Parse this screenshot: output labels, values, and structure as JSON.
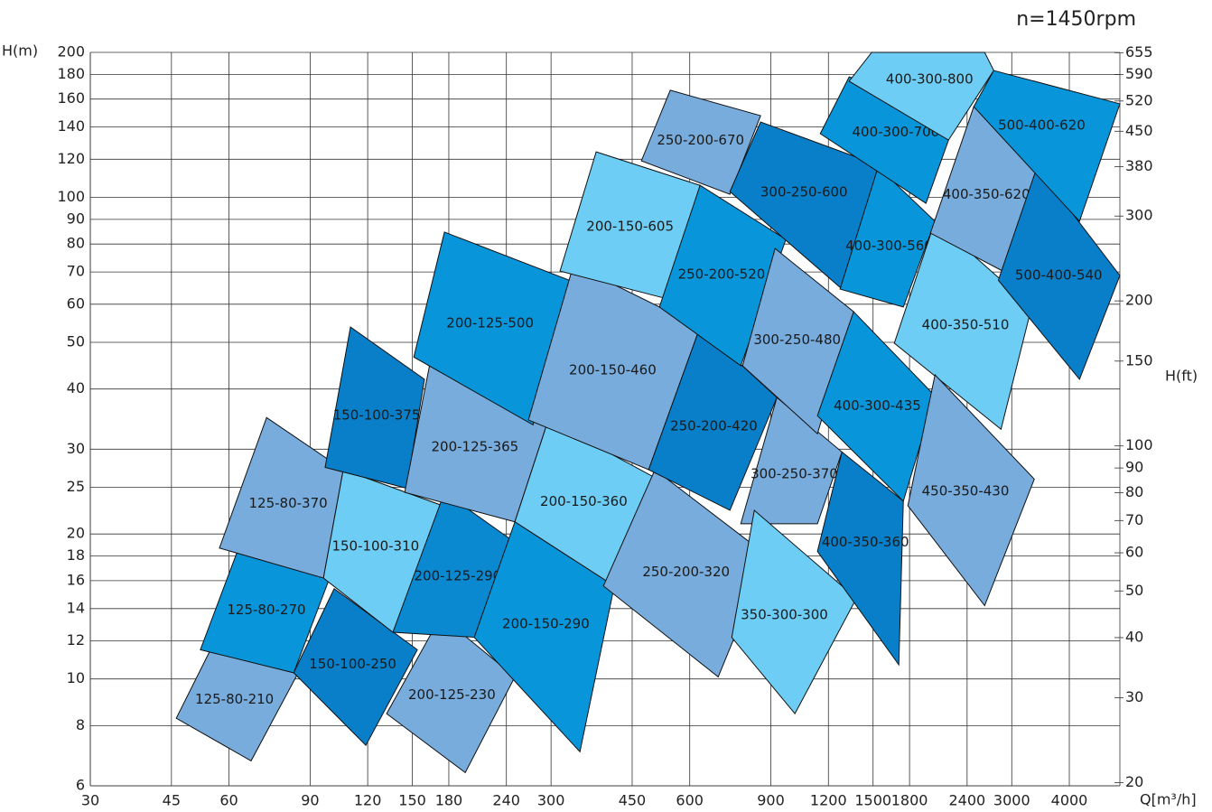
{
  "chart_data": {
    "type": "region",
    "title": "n=1450rpm",
    "x_label": "Q[m³/h]",
    "y_label": "H(m)",
    "y2_label": "H(ft)",
    "log_x": true,
    "log_y": true,
    "grid": true,
    "xlim": [
      30,
      5150
    ],
    "ylim": [
      6,
      200
    ],
    "y2lim": [
      19.7,
      656
    ],
    "xticks": [
      30,
      45,
      60,
      90,
      120,
      150,
      180,
      240,
      300,
      450,
      600,
      900,
      1200,
      1500,
      1800,
      2400,
      3000,
      4000
    ],
    "yticks": [
      6,
      8,
      10,
      12,
      14,
      16,
      18,
      20,
      25,
      30,
      40,
      50,
      60,
      70,
      80,
      90,
      100,
      120,
      140,
      160,
      180,
      200
    ],
    "y2ticks": [
      20,
      30,
      40,
      50,
      60,
      70,
      80,
      90,
      100,
      150,
      200,
      300,
      380,
      450,
      520,
      590,
      655
    ],
    "series": [
      {
        "name": "125-80-210",
        "color": "#77acdd",
        "x": [
          55.2,
          84.8,
          67.0,
          46.1
        ],
        "values": [
          11.7,
          10.3,
          6.76,
          8.29
        ]
      },
      {
        "name": "125-80-270",
        "color": "#0995d9",
        "x": [
          64.0,
          99.2,
          82.9,
          52.0
        ],
        "values": [
          19.5,
          16.2,
          10.3,
          11.5
        ]
      },
      {
        "name": "125-80-370",
        "color": "#77acdd",
        "x": [
          72.4,
          106.2,
          96.2,
          57.2
        ],
        "values": [
          34.9,
          27.2,
          16.2,
          18.7
        ]
      },
      {
        "name": "150-100-250",
        "color": "#087fc8",
        "x": [
          101.5,
          153.8,
          118.9,
          82.9
        ],
        "values": [
          15.4,
          11.5,
          7.28,
          10.3
        ]
      },
      {
        "name": "150-100-310",
        "color": "#6dcdf4",
        "x": [
          106.2,
          174.5,
          136.1,
          96.2
        ],
        "values": [
          27.2,
          22.9,
          12.5,
          16.2
        ]
      },
      {
        "name": "150-100-375",
        "color": "#087fc8",
        "x": [
          110.1,
          159.4,
          145.7,
          97.0
        ],
        "values": [
          53.8,
          41.9,
          24.9,
          27.5
        ]
      },
      {
        "name": "200-125-230",
        "color": "#77acdd",
        "x": [
          173.0,
          250.4,
          195.4,
          131.9
        ],
        "values": [
          13.5,
          10.1,
          6.39,
          8.47
        ]
      },
      {
        "name": "200-125-290",
        "color": "#0a88d0",
        "x": [
          176.1,
          252.7,
          207.2,
          136.1
        ],
        "values": [
          24.4,
          19.1,
          12.2,
          12.5
        ]
      },
      {
        "name": "200-125-365",
        "color": "#77acdd",
        "x": [
          165.3,
          295.9,
          250.4,
          144.4
        ],
        "values": [
          47.3,
          34.5,
          21.2,
          24.4
        ]
      },
      {
        "name": "200-125-500",
        "color": "#0995d9",
        "x": [
          176.1,
          328.3,
          274.2,
          151.1
        ],
        "values": [
          84.7,
          67.3,
          33.7,
          46.6
        ]
      },
      {
        "name": "200-150-290",
        "color": "#0995d9",
        "x": [
          250.4,
          411.6,
          346.6,
          204.4
        ],
        "values": [
          21.2,
          15.6,
          7.06,
          12.2
        ]
      },
      {
        "name": "200-150-360",
        "color": "#6dcdf4",
        "x": [
          295.9,
          511.1,
          411.6,
          250.4
        ],
        "values": [
          34.5,
          26.0,
          15.6,
          21.2
        ]
      },
      {
        "name": "200-150-460",
        "color": "#77acdd",
        "x": [
          335.8,
          631.9,
          488.6,
          268.0
        ],
        "values": [
          72.5,
          53.8,
          27.2,
          34.5
        ]
      },
      {
        "name": "200-150-605",
        "color": "#6dcdf4",
        "x": [
          375.9,
          631.9,
          527.5,
          313.8
        ],
        "values": [
          124.3,
          105.9,
          61.8,
          70.3
        ]
      },
      {
        "name": "250-200-320",
        "color": "#77acdd",
        "x": [
          504.3,
          886.6,
          691.7,
          389.8
        ],
        "values": [
          27.2,
          18.0,
          10.1,
          15.6
        ]
      },
      {
        "name": "250-200-420",
        "color": "#087fc8",
        "x": [
          631.9,
          927.5,
          733.5,
          488.6
        ],
        "values": [
          53.8,
          38.4,
          22.4,
          27.2
        ]
      },
      {
        "name": "250-200-520",
        "color": "#0995d9",
        "x": [
          631.9,
          970.3,
          774.4,
          515.7
        ],
        "values": [
          105.9,
          81.8,
          44.7,
          59.2
        ]
      },
      {
        "name": "250-200-670",
        "color": "#77acdd",
        "x": [
          544.4,
          855.1,
          733.5,
          471.2
        ],
        "values": [
          166.9,
          147.8,
          101.5,
          119.1
        ]
      },
      {
        "name": "300-250-370",
        "color": "#77acdd",
        "x": [
          927.5,
          1284,
          1136,
          774.4
        ],
        "values": [
          38.4,
          29.6,
          21.0,
          21.0
        ]
      },
      {
        "name": "300-250-480",
        "color": "#77acdd",
        "x": [
          919.2,
          1361,
          1136,
          781.4
        ],
        "values": [
          78.3,
          57.9,
          32.3,
          44.7
        ]
      },
      {
        "name": "300-250-600",
        "color": "#087fc8",
        "x": [
          855.1,
          1580,
          1284,
          733.5
        ],
        "values": [
          143.4,
          115.6,
          64.5,
          102.8
        ]
      },
      {
        "name": "350-300-300",
        "color": "#6dcdf4",
        "x": [
          828.6,
          1380,
          1015,
          740.3
        ],
        "values": [
          22.4,
          14.7,
          8.47,
          12.2
        ]
      },
      {
        "name": "400-300-435",
        "color": "#0995d9",
        "x": [
          1361,
          2044,
          1745,
          1136
        ],
        "values": [
          57.9,
          38.7,
          23.4,
          35.2
        ]
      },
      {
        "name": "400-300-560",
        "color": "#0995d9",
        "x": [
          1538,
          2044,
          1745,
          1272
        ],
        "values": [
          115.6,
          89.2,
          59.2,
          64.5
        ]
      },
      {
        "name": "400-300-700",
        "color": "#0995d9",
        "x": [
          1331,
          2044,
          2187,
          1954,
          1152
        ],
        "values": [
          177.9,
          154.3,
          131.5,
          97.2,
          135.6
        ]
      },
      {
        "name": "400-300-800",
        "color": "#6dcdf4",
        "x": [
          1490,
          2620,
          2742,
          2187,
          1331
        ],
        "values": [
          200,
          200,
          183.4,
          131.5,
          174.2
        ]
      },
      {
        "name": "400-350-360",
        "color": "#087fc8",
        "x": [
          1284,
          1745,
          1706,
          1136
        ],
        "values": [
          29.6,
          23.4,
          10.7,
          18.4
        ]
      },
      {
        "name": "400-350-510",
        "color": "#6dcdf4",
        "x": [
          2044,
          3313,
          2843,
          1668
        ],
        "values": [
          89.2,
          59.2,
          33.0,
          49.8
        ]
      },
      {
        "name": "400-350-620",
        "color": "#77acdd",
        "x": [
          2481,
          3435,
          2868,
          1998
        ],
        "values": [
          154.3,
          115.6,
          70.3,
          84.3
        ]
      },
      {
        "name": "450-350-430",
        "color": "#77acdd",
        "x": [
          2044,
          3358,
          2620,
          1785
        ],
        "values": [
          42.8,
          26.0,
          14.2,
          22.9
        ]
      },
      {
        "name": "500-400-540",
        "color": "#087fc8",
        "x": [
          3404,
          5150,
          4209,
          2805
        ],
        "values": [
          115.6,
          68.8,
          41.9,
          67.3
        ]
      },
      {
        "name": "500-400-620",
        "color": "#0995d9",
        "x": [
          2742,
          5150,
          4209,
          2481
        ],
        "values": [
          183.4,
          156.4,
          89.2,
          154.3
        ]
      }
    ]
  }
}
